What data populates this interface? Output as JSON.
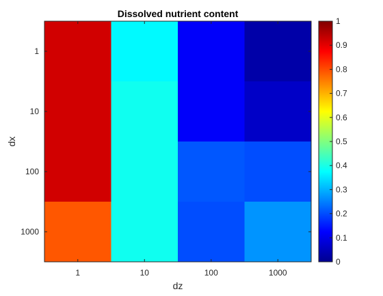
{
  "chart_data": {
    "type": "heatmap",
    "title": "Dissolved nutrient content",
    "xlabel": "dz",
    "ylabel": "dx",
    "x_categories": [
      "1",
      "10",
      "100",
      "1000"
    ],
    "y_categories": [
      "1",
      "10",
      "100",
      "1000"
    ],
    "values": [
      [
        0.92,
        0.37,
        0.12,
        0.04
      ],
      [
        0.92,
        0.39,
        0.12,
        0.07
      ],
      [
        0.92,
        0.39,
        0.21,
        0.2
      ],
      [
        0.79,
        0.39,
        0.2,
        0.27
      ]
    ],
    "colormap": "jet",
    "clim": [
      0,
      1
    ],
    "colorbar": {
      "ticks": [
        "0",
        "0.1",
        "0.2",
        "0.3",
        "0.4",
        "0.5",
        "0.6",
        "0.7",
        "0.8",
        "0.9",
        "1"
      ],
      "placement": "right"
    },
    "grid": false
  }
}
